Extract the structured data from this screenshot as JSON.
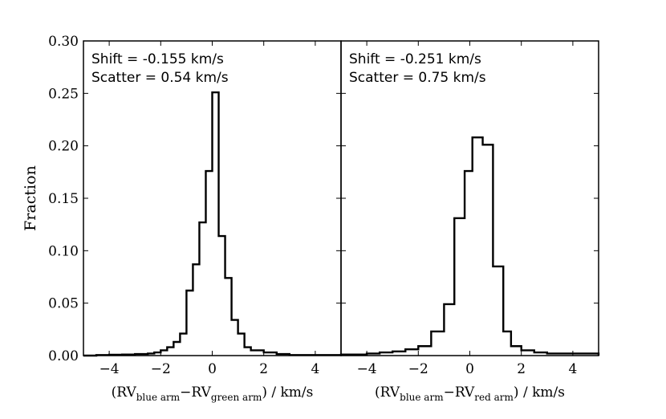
{
  "chart_data": {
    "type": "histogram",
    "ylabel": "Fraction",
    "ylim": [
      0,
      0.3
    ],
    "yticks": [
      "0.00",
      "0.05",
      "0.10",
      "0.15",
      "0.20",
      "0.25",
      "0.30"
    ],
    "yticks_values": [
      0,
      0.05,
      0.1,
      0.15,
      0.2,
      0.25,
      0.3
    ],
    "panels": [
      {
        "xlim": [
          -5,
          5
        ],
        "xticks": [
          "−4",
          "−2",
          "0",
          "2",
          "4"
        ],
        "xticks_values": [
          -4,
          -2,
          0,
          2,
          4
        ],
        "xlabel": {
          "open": "(RV",
          "sub1": "blue arm",
          "minus": "−RV",
          "sub2": "green arm",
          "close": ") / km/s"
        },
        "annotation": [
          "Shift = -0.155 km/s",
          "Scatter = 0.54 km/s"
        ],
        "bin_edges": [
          -5.0,
          -4.5,
          -4.0,
          -3.5,
          -3.0,
          -2.5,
          -2.25,
          -2.0,
          -1.75,
          -1.5,
          -1.25,
          -1.0,
          -0.75,
          -0.5,
          -0.25,
          0.0,
          0.25,
          0.5,
          0.75,
          1.0,
          1.25,
          1.5,
          2.0,
          2.5,
          3.0,
          5.0
        ],
        "fractions": [
          0.0,
          0.0005,
          0.0008,
          0.001,
          0.0015,
          0.002,
          0.003,
          0.005,
          0.008,
          0.013,
          0.021,
          0.062,
          0.087,
          0.127,
          0.176,
          0.251,
          0.114,
          0.074,
          0.034,
          0.021,
          0.008,
          0.005,
          0.003,
          0.0015,
          0.0005
        ]
      },
      {
        "xlim": [
          -5,
          5
        ],
        "xticks": [
          "−4",
          "−2",
          "0",
          "2",
          "4"
        ],
        "xticks_values": [
          -4,
          -2,
          0,
          2,
          4
        ],
        "xlabel": {
          "open": "(RV",
          "sub1": "blue arm",
          "minus": "−RV",
          "sub2": "red arm",
          "close": ") / km/s"
        },
        "annotation": [
          "Shift = -0.251 km/s",
          "Scatter = 0.75 km/s"
        ],
        "bin_edges": [
          -5.0,
          -4.0,
          -3.5,
          -3.0,
          -2.5,
          -2.0,
          -1.5,
          -1.0,
          -0.6,
          -0.2,
          0.1,
          0.5,
          0.9,
          1.3,
          1.6,
          2.0,
          2.5,
          3.0,
          5.0
        ],
        "fractions": [
          0.001,
          0.002,
          0.003,
          0.004,
          0.006,
          0.009,
          0.023,
          0.049,
          0.131,
          0.176,
          0.208,
          0.201,
          0.085,
          0.023,
          0.009,
          0.005,
          0.003,
          0.002
        ]
      }
    ]
  }
}
